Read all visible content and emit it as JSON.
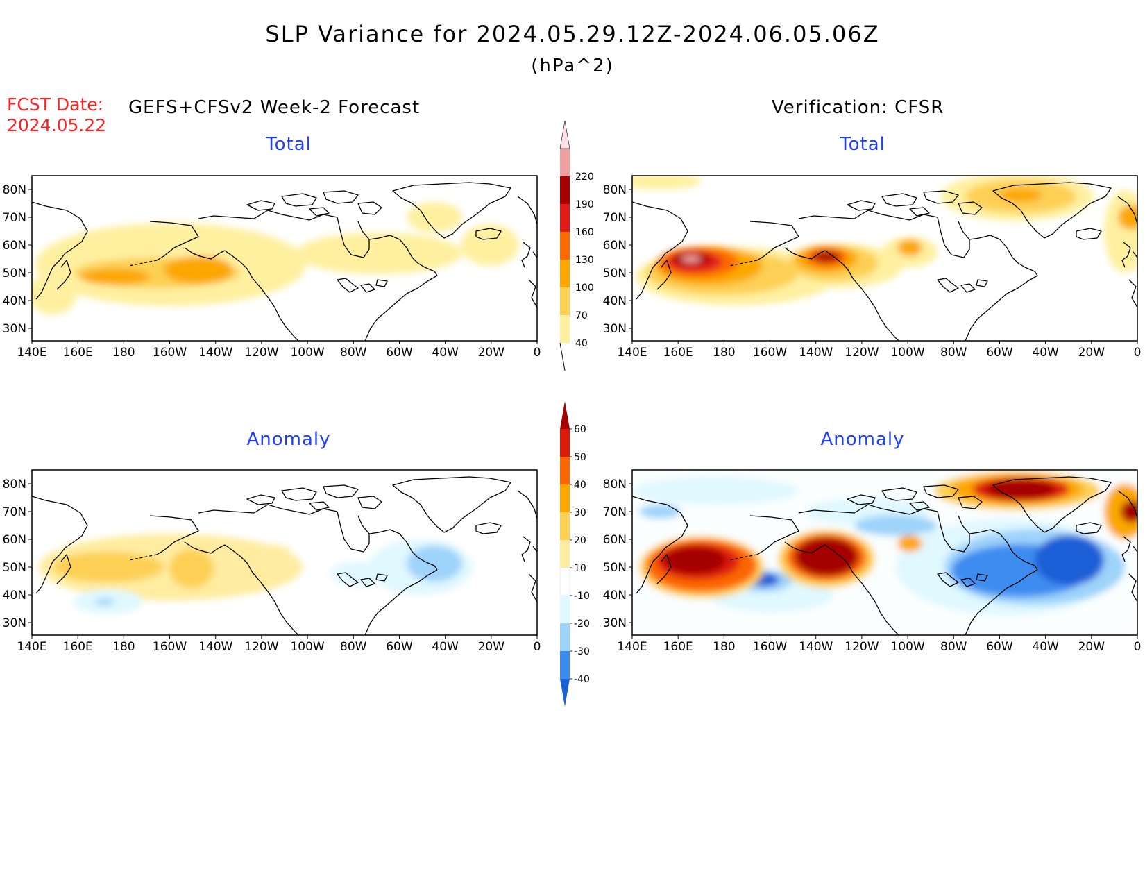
{
  "header": {
    "title": "SLP Variance for 2024.05.29.12Z-2024.06.05.06Z",
    "units": "(hPa^2)",
    "fcst_label": "FCST Date:",
    "fcst_date": "2024.05.22",
    "left_heading": "GEFS+CFSv2 Week-2 Forecast",
    "right_heading": "Verification: CFSR"
  },
  "panels": {
    "top_left": "Total",
    "top_right": "Total",
    "bottom_left": "Anomaly",
    "bottom_right": "Anomaly"
  },
  "axes": {
    "lon_labels": [
      "140E",
      "160E",
      "180",
      "160W",
      "140W",
      "120W",
      "100W",
      "80W",
      "60W",
      "40W",
      "20W",
      "0"
    ],
    "lat_labels": [
      "80N",
      "70N",
      "60N",
      "50N",
      "40N",
      "30N"
    ]
  },
  "colorbars": {
    "total": {
      "levels": [
        "40",
        "70",
        "100",
        "130",
        "160",
        "190",
        "220"
      ],
      "colors": [
        "#fff0a0",
        "#fdd055",
        "#fca700",
        "#fc6a00",
        "#e31a1a",
        "#a80000",
        "#f0a0a0",
        "#ffe0e6"
      ]
    },
    "anomaly": {
      "levels": [
        "60",
        "50",
        "40",
        "30",
        "20",
        "10",
        "-10",
        "-20",
        "-30",
        "-40"
      ],
      "colors": [
        "#a50000",
        "#dd1a0a",
        "#fc6600",
        "#fca700",
        "#fdd055",
        "#ffeca0",
        "#ffffff",
        "#e0f8ff",
        "#9ed3fa",
        "#3c8cf0",
        "#1a5fd6"
      ]
    }
  }
}
